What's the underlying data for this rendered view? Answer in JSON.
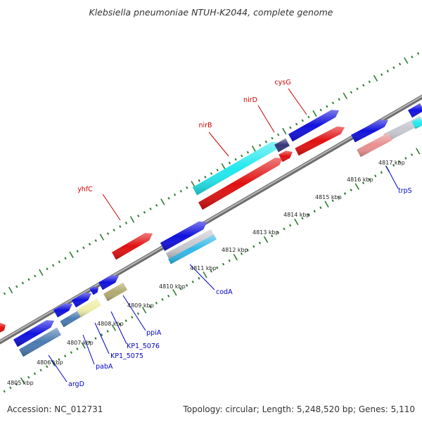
{
  "title": "Klebsiella pneumoniae NTUH-K2044, complete genome",
  "footer": {
    "accession": "Accession: NC_012731",
    "summary": "Topology: circular; Length: 5,248,520 bp; Genes: 5,110"
  },
  "colors": {
    "backbone": "#9a9a9a",
    "tick_major": "#2e7d32",
    "tick_minor": "#2e7d32",
    "forward_label": "#cc0000",
    "reverse_label": "#0000cc",
    "gene_blue": "#1010dd",
    "gene_red": "#e01010",
    "gene_cyan": "#22e8ee",
    "gene_grey": "#c8c8d0",
    "gene_steel": "#4a7ab0",
    "gene_yellow": "#f0eeaa",
    "gene_olive": "#b0aa70",
    "gene_pink": "#e89090",
    "gene_lightblue": "#30b8e8",
    "gene_navy": "#34347a"
  },
  "kbp_labels": [
    "4805 kbp",
    "4806 kbp",
    "4807 kbp",
    "4808 kbp",
    "4809 kbp",
    "4810 kbp",
    "4811 kbp",
    "4812 kbp",
    "4813 kbp",
    "4814 kbp",
    "4815 kbp",
    "4816 kbp",
    "4817 kbp"
  ],
  "forward_genes": [
    "yhfC",
    "nirB",
    "nirD",
    "cysG"
  ],
  "reverse_genes": [
    "argD",
    "pabA",
    "KP1_5075",
    "KP1_5076",
    "ppiA",
    "codA",
    "trpS"
  ]
}
